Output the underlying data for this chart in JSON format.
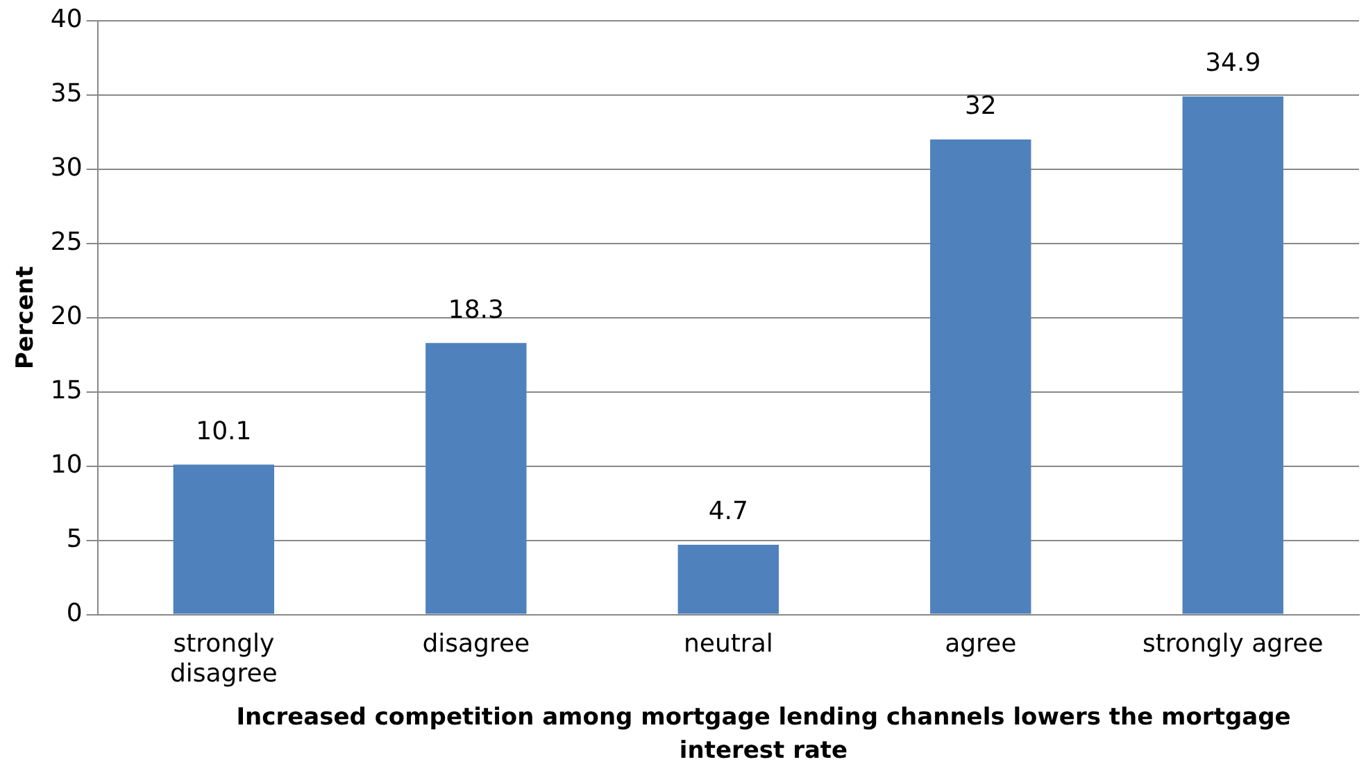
{
  "chart_data": {
    "type": "bar",
    "xlabel": "Increased competition among mortgage lending channels lowers the mortgage interest rate",
    "ylabel": "Percent",
    "categories": [
      "strongly disagree",
      "disagree",
      "neutral",
      "agree",
      "strongly agree"
    ],
    "values": [
      10.1,
      18.3,
      4.7,
      32,
      34.9
    ],
    "color": "#4f81bd",
    "ylim": [
      0,
      40
    ],
    "yticks": [
      0,
      5,
      10,
      15,
      20,
      25,
      30,
      35,
      40
    ],
    "grid": "y",
    "data_labels": true
  }
}
